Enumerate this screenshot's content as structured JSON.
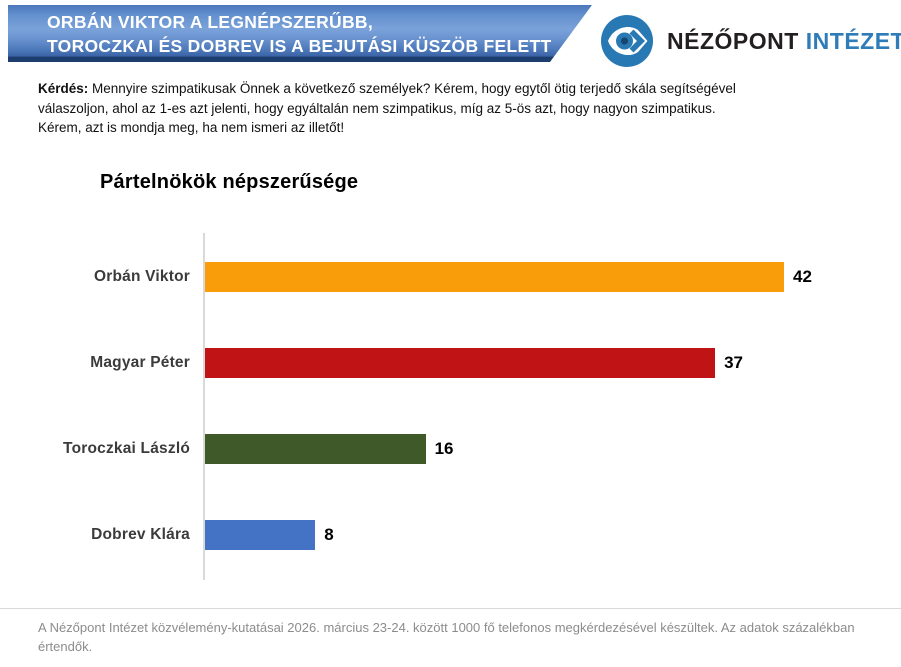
{
  "banner": {
    "line1": "ORBÁN VIKTOR A LEGNÉPSZERŰBB,",
    "line2": "TOROCZKAI ÉS DOBREV IS A BEJUTÁSI KÜSZÖB FELETT",
    "colors": {
      "gradient_top": "#4C77BC",
      "gradient_middle": "#7BA2DA",
      "gradient_bottom_strip": "#1E3D6F",
      "text": "#FFFFFF"
    }
  },
  "logo": {
    "icon": "nezopont-eye-icon",
    "name_primary": "NÉZŐPONT",
    "name_secondary": "INTÉZET",
    "colors": {
      "icon_blue": "#2878B4",
      "primary_text": "#231F20",
      "secondary_text": "#2E7CB8"
    }
  },
  "question": {
    "label": "Kérdés:",
    "text": " Mennyire szimpatikusak Önnek a következő személyek? Kérem, hogy egytől ötig terjedő skála segítségével válaszoljon, ahol az 1-es azt jelenti, hogy egyáltalán nem szimpatikus, míg az 5-ös azt, hogy nagyon szimpatikus. Kérem, azt is mondja meg, ha nem ismeri az illetőt!"
  },
  "chart_data": {
    "type": "bar",
    "orientation": "horizontal",
    "title": "Pártelnökök népszerűsége",
    "categories": [
      "Orbán Viktor",
      "Magyar Péter",
      "Toroczkai László",
      "Dobrev Klára"
    ],
    "values": [
      42,
      37,
      16,
      8
    ],
    "bar_colors": [
      "#F99D0B",
      "#C01315",
      "#3F5A28",
      "#4472C4"
    ],
    "xlabel": "",
    "ylabel": "",
    "xlim": [
      0,
      42
    ],
    "grid": false,
    "legend": false,
    "value_labels_shown": true,
    "unit": "percent"
  },
  "footer": {
    "text": "A Nézőpont Intézet közvélemény-kutatásai 2026. március 23-24. között 1000 fő telefonos megkérdezésével készültek. Az adatok százalékban értendők."
  }
}
